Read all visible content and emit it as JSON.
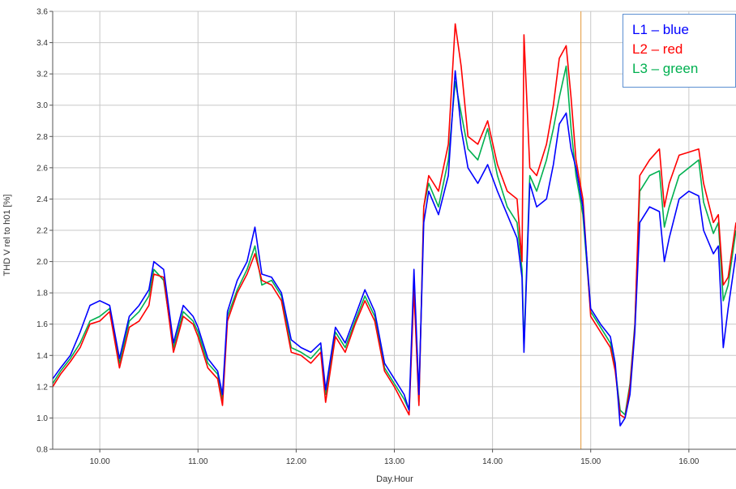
{
  "chart_data": {
    "type": "line",
    "title": "",
    "xlabel": "Day.Hour",
    "ylabel": "THD V rel to h01 [%]",
    "xlim": [
      9.52,
      16.48
    ],
    "ylim": [
      0.8,
      3.6
    ],
    "x_ticks": [
      10.0,
      11.0,
      12.0,
      13.0,
      14.0,
      15.0,
      16.0
    ],
    "x_tick_labels": [
      "10.00",
      "11.00",
      "12.00",
      "13.00",
      "14.00",
      "15.00",
      "16.00"
    ],
    "y_ticks": [
      0.8,
      1.0,
      1.2,
      1.4,
      1.6,
      1.8,
      2.0,
      2.2,
      2.4,
      2.6,
      2.8,
      3.0,
      3.2,
      3.4,
      3.6
    ],
    "y_tick_labels": [
      "0.8",
      "1.0",
      "1.2",
      "1.4",
      "1.6",
      "1.8",
      "2.0",
      "2.2",
      "2.4",
      "2.6",
      "2.8",
      "3.0",
      "3.2",
      "3.4",
      "3.6"
    ],
    "grid": true,
    "marker_line": {
      "x": 14.9,
      "color": "#e8a858"
    },
    "legend": {
      "placement": "top-right",
      "entries": [
        {
          "label": "L1 – blue",
          "color": "#0000ff"
        },
        {
          "label": "L2 – red",
          "color": "#ff0000"
        },
        {
          "label": "L3 – green",
          "color": "#00b050"
        }
      ]
    },
    "series": [
      {
        "color": "#00b050",
        "x": [
          9.52,
          9.6,
          9.7,
          9.8,
          9.9,
          10.0,
          10.1,
          10.2,
          10.3,
          10.4,
          10.5,
          10.55,
          10.65,
          10.75,
          10.85,
          10.95,
          11.0,
          11.1,
          11.2,
          11.25,
          11.3,
          11.4,
          11.5,
          11.58,
          11.65,
          11.75,
          11.85,
          11.95,
          12.05,
          12.15,
          12.25,
          12.3,
          12.4,
          12.5,
          12.6,
          12.7,
          12.8,
          12.9,
          13.0,
          13.1,
          13.15,
          13.2,
          13.25,
          13.3,
          13.35,
          13.45,
          13.55,
          13.62,
          13.68,
          13.75,
          13.85,
          13.95,
          14.05,
          14.15,
          14.25,
          14.3,
          14.32,
          14.38,
          14.45,
          14.55,
          14.62,
          14.68,
          14.75,
          14.8,
          14.85,
          14.92,
          15.0,
          15.1,
          15.2,
          15.25,
          15.3,
          15.35,
          15.4,
          15.45,
          15.5,
          15.6,
          15.7,
          15.75,
          15.8,
          15.9,
          16.0,
          16.1,
          16.15,
          16.25,
          16.3,
          16.35,
          16.4,
          16.48
        ],
        "values": [
          1.22,
          1.3,
          1.38,
          1.48,
          1.62,
          1.65,
          1.7,
          1.35,
          1.62,
          1.68,
          1.78,
          1.95,
          1.88,
          1.45,
          1.68,
          1.62,
          1.55,
          1.35,
          1.28,
          1.12,
          1.65,
          1.82,
          1.95,
          2.1,
          1.85,
          1.88,
          1.78,
          1.45,
          1.42,
          1.38,
          1.45,
          1.15,
          1.55,
          1.45,
          1.62,
          1.78,
          1.65,
          1.32,
          1.22,
          1.12,
          1.05,
          1.85,
          1.1,
          2.35,
          2.5,
          2.35,
          2.65,
          3.15,
          2.95,
          2.72,
          2.65,
          2.85,
          2.55,
          2.35,
          2.25,
          1.95,
          1.45,
          2.55,
          2.45,
          2.65,
          2.85,
          3.05,
          3.25,
          2.85,
          2.55,
          2.3,
          1.68,
          1.58,
          1.48,
          1.32,
          1.05,
          1.02,
          1.22,
          1.6,
          2.45,
          2.55,
          2.58,
          2.22,
          2.35,
          2.55,
          2.6,
          2.65,
          2.38,
          2.18,
          2.25,
          1.75,
          1.85,
          2.2
        ]
      },
      {
        "color": "#ff0000",
        "x": [
          9.52,
          9.6,
          9.7,
          9.8,
          9.9,
          10.0,
          10.1,
          10.2,
          10.3,
          10.4,
          10.5,
          10.55,
          10.65,
          10.75,
          10.85,
          10.95,
          11.0,
          11.1,
          11.2,
          11.25,
          11.3,
          11.4,
          11.5,
          11.58,
          11.65,
          11.75,
          11.85,
          11.95,
          12.05,
          12.15,
          12.25,
          12.3,
          12.4,
          12.5,
          12.6,
          12.7,
          12.8,
          12.9,
          13.0,
          13.1,
          13.15,
          13.2,
          13.25,
          13.3,
          13.35,
          13.45,
          13.55,
          13.62,
          13.68,
          13.75,
          13.85,
          13.95,
          14.05,
          14.15,
          14.25,
          14.3,
          14.32,
          14.38,
          14.45,
          14.55,
          14.62,
          14.68,
          14.75,
          14.8,
          14.85,
          14.92,
          15.0,
          15.1,
          15.2,
          15.25,
          15.3,
          15.35,
          15.4,
          15.45,
          15.5,
          15.6,
          15.7,
          15.75,
          15.8,
          15.9,
          16.0,
          16.1,
          16.15,
          16.25,
          16.3,
          16.35,
          16.4,
          16.48
        ],
        "values": [
          1.2,
          1.28,
          1.36,
          1.45,
          1.6,
          1.62,
          1.68,
          1.32,
          1.58,
          1.62,
          1.72,
          1.92,
          1.9,
          1.42,
          1.65,
          1.6,
          1.52,
          1.32,
          1.25,
          1.08,
          1.62,
          1.8,
          1.92,
          2.05,
          1.88,
          1.85,
          1.75,
          1.42,
          1.4,
          1.35,
          1.42,
          1.1,
          1.52,
          1.42,
          1.6,
          1.75,
          1.62,
          1.3,
          1.2,
          1.08,
          1.02,
          1.82,
          1.08,
          2.35,
          2.55,
          2.45,
          2.75,
          3.52,
          3.25,
          2.8,
          2.75,
          2.9,
          2.62,
          2.45,
          2.4,
          2.0,
          3.45,
          2.6,
          2.55,
          2.75,
          3.0,
          3.3,
          3.38,
          3.05,
          2.65,
          2.4,
          1.65,
          1.55,
          1.45,
          1.3,
          1.02,
          1.0,
          1.2,
          1.58,
          2.55,
          2.65,
          2.72,
          2.35,
          2.5,
          2.68,
          2.7,
          2.72,
          2.5,
          2.25,
          2.3,
          1.85,
          1.9,
          2.25
        ]
      },
      {
        "color": "#0000ff",
        "x": [
          9.52,
          9.6,
          9.7,
          9.8,
          9.9,
          10.0,
          10.1,
          10.2,
          10.3,
          10.4,
          10.5,
          10.55,
          10.65,
          10.75,
          10.85,
          10.95,
          11.0,
          11.1,
          11.2,
          11.25,
          11.3,
          11.4,
          11.5,
          11.58,
          11.65,
          11.75,
          11.85,
          11.95,
          12.05,
          12.15,
          12.25,
          12.3,
          12.4,
          12.5,
          12.6,
          12.7,
          12.8,
          12.9,
          13.0,
          13.1,
          13.15,
          13.2,
          13.25,
          13.3,
          13.35,
          13.45,
          13.55,
          13.62,
          13.68,
          13.75,
          13.85,
          13.95,
          14.05,
          14.15,
          14.25,
          14.3,
          14.32,
          14.38,
          14.45,
          14.55,
          14.62,
          14.68,
          14.75,
          14.8,
          14.85,
          14.92,
          15.0,
          15.1,
          15.2,
          15.25,
          15.3,
          15.35,
          15.4,
          15.45,
          15.5,
          15.6,
          15.7,
          15.75,
          15.8,
          15.9,
          16.0,
          16.1,
          16.15,
          16.25,
          16.3,
          16.35,
          16.4,
          16.48
        ],
        "values": [
          1.25,
          1.32,
          1.4,
          1.55,
          1.72,
          1.75,
          1.72,
          1.38,
          1.65,
          1.72,
          1.82,
          2.0,
          1.95,
          1.48,
          1.72,
          1.65,
          1.58,
          1.38,
          1.3,
          1.15,
          1.68,
          1.88,
          2.0,
          2.22,
          1.92,
          1.9,
          1.8,
          1.5,
          1.45,
          1.42,
          1.48,
          1.18,
          1.58,
          1.48,
          1.65,
          1.82,
          1.68,
          1.35,
          1.25,
          1.15,
          1.05,
          1.95,
          1.15,
          2.25,
          2.45,
          2.3,
          2.55,
          3.22,
          2.85,
          2.6,
          2.5,
          2.62,
          2.45,
          2.3,
          2.15,
          1.9,
          1.42,
          2.5,
          2.35,
          2.4,
          2.62,
          2.88,
          2.95,
          2.72,
          2.6,
          2.35,
          1.7,
          1.6,
          1.52,
          1.35,
          0.95,
          1.0,
          1.15,
          1.55,
          2.25,
          2.35,
          2.32,
          2.0,
          2.15,
          2.4,
          2.45,
          2.42,
          2.2,
          2.05,
          2.1,
          1.45,
          1.7,
          2.05
        ]
      }
    ]
  }
}
